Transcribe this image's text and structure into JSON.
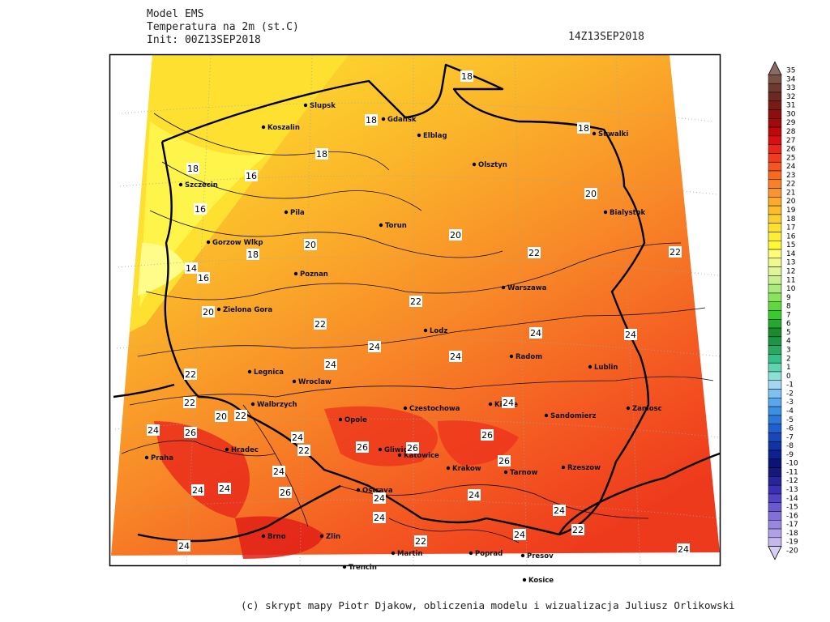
{
  "header": {
    "model": "Model EMS",
    "variable": "Temperatura na 2m (st.C)",
    "init": "Init: 00Z13SEP2018",
    "valid": "14Z13SEP2018"
  },
  "map": {
    "cities": [
      "Slupsk",
      "Koszalin",
      "Gdansk",
      "Elblag",
      "Suwalki",
      "Olsztyn",
      "Szczecin",
      "Bialystok",
      "Pila",
      "Torun",
      "Gorzow Wlkp",
      "Poznan",
      "Warszawa",
      "Zielona Gora",
      "Lodz",
      "Radom",
      "Lublin",
      "Legnica",
      "Wroclaw",
      "Walbrzych",
      "Czestochowa",
      "Kielce",
      "Opole",
      "Sandomierz",
      "Zamosc",
      "Hradec",
      "Praha",
      "Gliwice",
      "Katowice",
      "Krakow",
      "Tarnow",
      "Rzeszow",
      "Ostrava",
      "Brno",
      "Zlin",
      "Martin",
      "Poprad",
      "Presov",
      "Trencin",
      "Kosice"
    ],
    "contour_labels": [
      18,
      18,
      18,
      18,
      18,
      16,
      20,
      16,
      20,
      20,
      18,
      22,
      22,
      14,
      16,
      22,
      20,
      22,
      24,
      24,
      24,
      24,
      24,
      22,
      22,
      24,
      20,
      22,
      24,
      26,
      26,
      24,
      22,
      26,
      26,
      26,
      24,
      24,
      24,
      26,
      24,
      24,
      24,
      24,
      22,
      24,
      22,
      24,
      24
    ]
  },
  "colorbar": {
    "levels": [
      35,
      34,
      33,
      32,
      31,
      30,
      29,
      28,
      27,
      26,
      25,
      24,
      23,
      22,
      21,
      20,
      19,
      18,
      17,
      16,
      15,
      14,
      13,
      12,
      11,
      10,
      9,
      8,
      7,
      6,
      5,
      4,
      3,
      2,
      1,
      0,
      -1,
      -2,
      -3,
      -4,
      -5,
      -6,
      -7,
      -8,
      -9,
      -10,
      -11,
      -12,
      -13,
      -14,
      -15,
      -16,
      -17,
      -18,
      -19,
      -20
    ],
    "colors": [
      "#8a6b62",
      "#7b5045",
      "#6e3a30",
      "#6a2a22",
      "#7a1a14",
      "#8b0f0c",
      "#a00a0a",
      "#c00808",
      "#d81010",
      "#e8261a",
      "#f03c1e",
      "#f55522",
      "#f76a24",
      "#f88028",
      "#f9952c",
      "#fbaa2c",
      "#fbbd2a",
      "#fcd02a",
      "#fde030",
      "#fdee34",
      "#fef836",
      "#fffc7a",
      "#f0f890",
      "#e2f49a",
      "#c8f090",
      "#a8ec7c",
      "#88e45c",
      "#5ed83a",
      "#3cc830",
      "#24a830",
      "#1c8a2e",
      "#1e9446",
      "#26aa62",
      "#34c088",
      "#60d4b0",
      "#8ce0d4",
      "#a4d8f0",
      "#7ec0f0",
      "#5aa8ec",
      "#3c90e4",
      "#2a78dc",
      "#2060cc",
      "#1848b8",
      "#1034a4",
      "#0c2290",
      "#0a1478",
      "#181878",
      "#28249a",
      "#3a30b4",
      "#5444c4",
      "#6a5ad0",
      "#8270d8",
      "#9a88e0",
      "#b0a0e8",
      "#c4b8ee",
      "#d8d0f4"
    ]
  },
  "footer": "(c) skrypt mapy Piotr Djakow, obliczenia modelu i wizualizacja Juliusz Orlikowski"
}
